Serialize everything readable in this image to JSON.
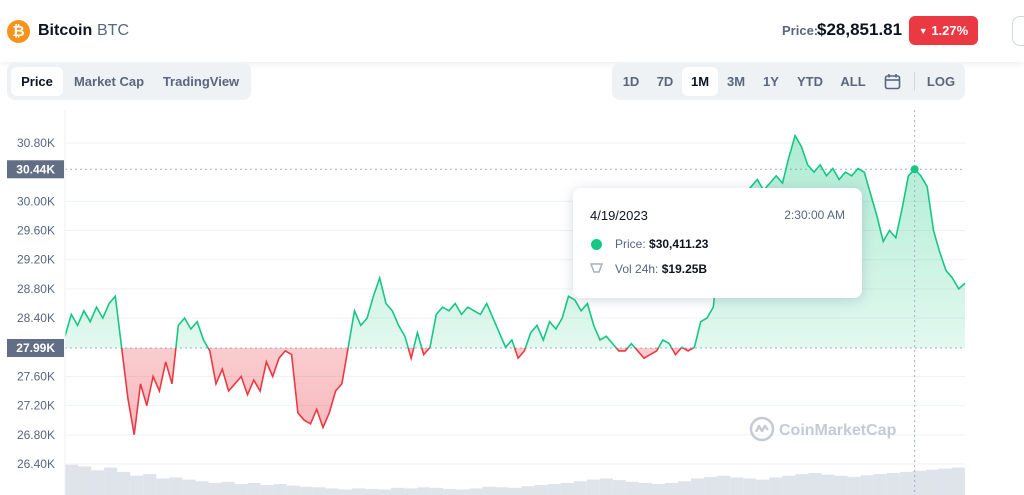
{
  "header": {
    "coin_name": "Bitcoin",
    "coin_symbol": "BTC",
    "logo_glyph": "₿",
    "logo_color": "#f7931a",
    "price_label": "Price:",
    "price_value": "$28,851.81",
    "change_value": "1.27%",
    "change_color": "#ea3943"
  },
  "tabs": [
    {
      "label": "Price",
      "active": true
    },
    {
      "label": "Market Cap",
      "active": false
    },
    {
      "label": "TradingView",
      "active": false
    }
  ],
  "ranges": [
    {
      "label": "1D",
      "active": false
    },
    {
      "label": "7D",
      "active": false
    },
    {
      "label": "1M",
      "active": true
    },
    {
      "label": "3M",
      "active": false
    },
    {
      "label": "1Y",
      "active": false
    },
    {
      "label": "YTD",
      "active": false
    },
    {
      "label": "ALL",
      "active": false
    },
    {
      "label": "LOG",
      "active": false
    }
  ],
  "tooltip": {
    "date": "4/19/2023",
    "time": "2:30:00 AM",
    "price_label": "Price:",
    "price_value": "$30,411.23",
    "volume_label": "Vol 24h:",
    "volume_value": "$19.25B"
  },
  "watermark": "CoinMarketCap",
  "chart_data": {
    "type": "line",
    "y_ticks": [
      "30.80K",
      "30.44K",
      "30.00K",
      "29.60K",
      "29.20K",
      "28.80K",
      "28.40K",
      "27.99K",
      "27.60K",
      "27.20K",
      "26.80K",
      "26.40K"
    ],
    "highlighted_ticks": [
      "30.44K",
      "27.99K"
    ],
    "ylim": [
      26200,
      31200
    ],
    "baseline": 27990,
    "crosshair_value": 30440,
    "up_color": "#16c784",
    "down_color": "#ea3943",
    "series": [
      {
        "values": [
          28150,
          28450,
          28300,
          28500,
          28350,
          28550,
          28400,
          28600,
          28700,
          28000,
          27300,
          26800,
          27500,
          27200,
          27600,
          27400,
          27800,
          27500,
          28300,
          28400,
          28250,
          28350,
          28100,
          27950,
          27500,
          27700,
          27400,
          27500,
          27600,
          27350,
          27550,
          27400,
          27800,
          27600,
          27850,
          27950,
          27900,
          27100,
          27000,
          26950,
          27150,
          26900,
          27100,
          27400,
          27500,
          28000,
          28500,
          28300,
          28400,
          28700,
          28950,
          28600,
          28500,
          28300,
          28150,
          27850,
          28200,
          27900,
          28000,
          28450,
          28550,
          28500,
          28600,
          28450,
          28550,
          28500,
          28450,
          28600,
          28400,
          28200,
          28000,
          28100,
          27850,
          27950,
          28200,
          28300,
          28100,
          28350,
          28250,
          28400,
          28700,
          28650,
          28500,
          28600,
          28300,
          28100,
          28150,
          28050,
          27950,
          27950,
          28050,
          27950,
          27850,
          27900,
          27950,
          28100,
          28050,
          27900,
          28000,
          27950,
          28000,
          28350,
          28400,
          28550,
          29400,
          29700,
          29800,
          30000,
          30100,
          30200,
          30300,
          30150,
          30250,
          30350,
          30250,
          30600,
          30900,
          30750,
          30500,
          30400,
          30500,
          30350,
          30450,
          30300,
          30400,
          30350,
          30450,
          30400,
          30100,
          29800,
          29450,
          29600,
          29500,
          29900,
          30350,
          30440,
          30350,
          30200,
          29600,
          29300,
          29050,
          28950,
          28800,
          28880
        ]
      }
    ],
    "volume": [
      0.55,
      0.52,
      0.45,
      0.5,
      0.42,
      0.35,
      0.38,
      0.3,
      0.32,
      0.28,
      0.25,
      0.22,
      0.24,
      0.2,
      0.22,
      0.18,
      0.2,
      0.17,
      0.15,
      0.14,
      0.12,
      0.1,
      0.12,
      0.11,
      0.1,
      0.13,
      0.12,
      0.14,
      0.13,
      0.11,
      0.1,
      0.12,
      0.15,
      0.14,
      0.13,
      0.16,
      0.18,
      0.2,
      0.22,
      0.25,
      0.28,
      0.3,
      0.27,
      0.24,
      0.22,
      0.2,
      0.22,
      0.25,
      0.3,
      0.33,
      0.35,
      0.32,
      0.3,
      0.28,
      0.32,
      0.35,
      0.38,
      0.4,
      0.37,
      0.35,
      0.33,
      0.36,
      0.38,
      0.4,
      0.42,
      0.44,
      0.46,
      0.48,
      0.5
    ]
  }
}
